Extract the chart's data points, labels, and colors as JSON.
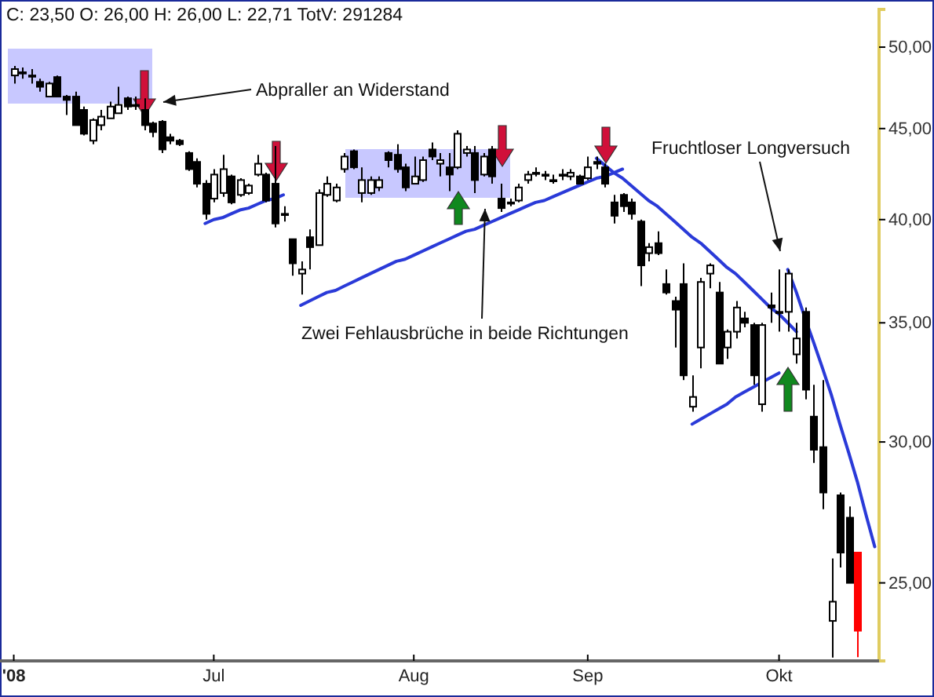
{
  "chart_data": {
    "type": "candlestick",
    "title": "C: 23,50 O: 26,00 H: 26,00 L: 22,71 TotV: 291284",
    "categories": [
      "'08",
      null,
      null,
      null,
      null,
      null,
      null,
      null,
      null,
      null,
      null,
      null,
      null,
      null,
      null,
      null,
      null,
      null,
      null,
      null,
      null,
      null,
      null,
      "Jul",
      null,
      null,
      null,
      null,
      null,
      null,
      null,
      null,
      null,
      null,
      null,
      null,
      null,
      null,
      null,
      null,
      null,
      null,
      null,
      null,
      null,
      null,
      "Aug",
      null,
      null,
      null,
      null,
      null,
      null,
      null,
      null,
      null,
      null,
      null,
      null,
      null,
      null,
      null,
      null,
      null,
      null,
      null,
      "Sep",
      null,
      null,
      null,
      null,
      null,
      null,
      null,
      null,
      null,
      null,
      null,
      null,
      null,
      null,
      null,
      null,
      null,
      null,
      null,
      null,
      null,
      "Okt",
      null,
      null,
      null,
      null,
      null,
      null,
      null,
      null,
      null,
      null,
      null
    ],
    "ohlc": [
      [
        48.2,
        48.8,
        47.7,
        48.6
      ],
      [
        48.4,
        48.7,
        48.0,
        48.4
      ],
      [
        48.2,
        48.6,
        47.7,
        48.2
      ],
      [
        47.8,
        48.0,
        47.2,
        47.5
      ],
      [
        46.9,
        47.8,
        46.9,
        47.7
      ],
      [
        48.1,
        48.2,
        46.9,
        46.9
      ],
      [
        46.9,
        47.0,
        45.8,
        46.7
      ],
      [
        46.9,
        47.2,
        45.2,
        45.2
      ],
      [
        46.1,
        46.3,
        44.6,
        44.7
      ],
      [
        44.3,
        45.6,
        44.1,
        45.5
      ],
      [
        45.2,
        46.1,
        44.9,
        45.7
      ],
      [
        45.6,
        46.6,
        45.6,
        46.3
      ],
      [
        45.9,
        47.5,
        45.9,
        46.4
      ],
      [
        46.8,
        46.9,
        46.1,
        46.3
      ],
      [
        46.4,
        46.9,
        46.1,
        46.4
      ],
      [
        46.1,
        46.8,
        44.9,
        45.2
      ],
      [
        45.3,
        45.4,
        44.5,
        44.8
      ],
      [
        45.4,
        45.5,
        43.6,
        43.8
      ],
      [
        44.5,
        44.7,
        44.1,
        44.3
      ],
      [
        44.3,
        44.4,
        44.0,
        44.1
      ],
      [
        43.6,
        43.7,
        42.6,
        42.7
      ],
      [
        43.1,
        43.3,
        41.7,
        41.9
      ],
      [
        41.9,
        42.1,
        40.0,
        40.3
      ],
      [
        41.1,
        42.7,
        40.9,
        42.4
      ],
      [
        41.4,
        43.5,
        41.2,
        42.7
      ],
      [
        42.3,
        42.4,
        40.8,
        40.9
      ],
      [
        41.3,
        42.2,
        41.2,
        42.1
      ],
      [
        41.4,
        41.9,
        41.3,
        41.8
      ],
      [
        42.4,
        43.5,
        42.3,
        43.0
      ],
      [
        42.4,
        42.5,
        40.9,
        41.0
      ],
      [
        41.9,
        44.0,
        39.6,
        39.8
      ],
      [
        40.3,
        40.7,
        39.9,
        40.3
      ],
      [
        39.0,
        39.0,
        37.2,
        37.8
      ],
      [
        37.3,
        37.9,
        36.3,
        37.5
      ],
      [
        39.1,
        39.5,
        37.5,
        38.6
      ],
      [
        38.7,
        41.6,
        38.7,
        41.4
      ],
      [
        41.3,
        42.3,
        41.2,
        41.9
      ],
      [
        41.0,
        41.9,
        40.9,
        41.7
      ],
      [
        42.7,
        43.6,
        42.5,
        43.4
      ],
      [
        43.7,
        43.8,
        42.7,
        42.8
      ],
      [
        41.4,
        42.8,
        40.9,
        42.1
      ],
      [
        41.4,
        42.3,
        41.3,
        42.1
      ],
      [
        41.7,
        42.3,
        41.5,
        42.1
      ],
      [
        43.6,
        43.7,
        42.8,
        43.2
      ],
      [
        43.5,
        44.1,
        42.5,
        42.7
      ],
      [
        42.8,
        43.0,
        41.5,
        41.7
      ],
      [
        41.9,
        43.4,
        41.9,
        42.3
      ],
      [
        42.1,
        43.4,
        42.0,
        43.2
      ],
      [
        43.8,
        44.2,
        43.2,
        43.4
      ],
      [
        43.0,
        43.6,
        42.3,
        43.2
      ],
      [
        42.8,
        43.6,
        41.5,
        42.4
      ],
      [
        42.8,
        44.9,
        42.7,
        44.7
      ],
      [
        43.6,
        44.0,
        43.4,
        43.8
      ],
      [
        43.6,
        44.0,
        41.4,
        42.1
      ],
      [
        42.4,
        43.6,
        42.3,
        43.4
      ],
      [
        43.8,
        44.0,
        41.9,
        42.3
      ],
      [
        41.1,
        41.9,
        40.4,
        40.6
      ],
      [
        40.9,
        41.1,
        40.7,
        40.9
      ],
      [
        41.0,
        41.9,
        40.9,
        41.7
      ],
      [
        42.1,
        42.6,
        41.9,
        42.4
      ],
      [
        42.5,
        42.8,
        42.3,
        42.5
      ],
      [
        42.4,
        42.6,
        42.1,
        42.4
      ],
      [
        42.1,
        42.4,
        41.9,
        42.1
      ],
      [
        42.4,
        42.7,
        42.1,
        42.4
      ],
      [
        42.3,
        42.7,
        42.1,
        42.5
      ],
      [
        42.3,
        42.4,
        41.9,
        41.9
      ],
      [
        42.2,
        43.4,
        42.1,
        42.8
      ],
      [
        43.1,
        43.4,
        42.7,
        43.0
      ],
      [
        42.8,
        43.0,
        41.7,
        41.9
      ],
      [
        40.9,
        41.3,
        39.8,
        40.2
      ],
      [
        41.3,
        41.4,
        40.4,
        40.7
      ],
      [
        40.9,
        41.1,
        40.0,
        40.3
      ],
      [
        39.9,
        40.0,
        36.7,
        37.7
      ],
      [
        38.3,
        38.8,
        37.9,
        38.6
      ],
      [
        38.8,
        39.4,
        38.2,
        38.3
      ],
      [
        36.8,
        37.5,
        36.3,
        36.4
      ],
      [
        36.0,
        36.2,
        33.9,
        35.6
      ],
      [
        36.8,
        37.8,
        32.5,
        32.7
      ],
      [
        31.4,
        32.7,
        31.2,
        31.8
      ],
      [
        33.9,
        37.1,
        33.0,
        36.9
      ],
      [
        37.3,
        37.8,
        36.6,
        37.7
      ],
      [
        36.4,
        36.9,
        33.2,
        33.2
      ],
      [
        33.9,
        34.7,
        33.4,
        34.6
      ],
      [
        34.6,
        36.0,
        34.3,
        35.7
      ],
      [
        35.2,
        35.5,
        34.8,
        35.0
      ],
      [
        34.9,
        35.0,
        32.3,
        32.7
      ],
      [
        31.5,
        35.0,
        31.2,
        34.9
      ],
      [
        35.8,
        36.4,
        35.0,
        35.7
      ],
      [
        35.5,
        37.5,
        34.6,
        35.5
      ],
      [
        35.5,
        37.5,
        34.6,
        37.3
      ],
      [
        33.6,
        35.0,
        33.2,
        34.3
      ],
      [
        35.5,
        35.7,
        31.7,
        32.1
      ],
      [
        31.0,
        32.3,
        29.2,
        29.7
      ],
      [
        29.8,
        32.5,
        27.5,
        28.1
      ],
      [
        23.8,
        25.8,
        22.7,
        24.4
      ],
      [
        28.0,
        28.1,
        25.5,
        26.0
      ],
      [
        27.2,
        27.6,
        25.0,
        25.0
      ],
      [
        26.0,
        26.0,
        22.71,
        23.5
      ],
      null,
      null
    ],
    "colors": [
      "#ffffff",
      "#000000",
      "#000000",
      "#000000",
      "#ffffff",
      "#000000",
      "#000000",
      "#000000",
      "#000000",
      "#ffffff",
      "#ffffff",
      "#ffffff",
      "#ffffff",
      "#000000",
      "#000000",
      "#000000",
      "#000000",
      "#000000",
      "#000000",
      "#000000",
      "#000000",
      "#000000",
      "#000000",
      "#ffffff",
      "#ffffff",
      "#000000",
      "#ffffff",
      "#ffffff",
      "#ffffff",
      "#000000",
      "#000000",
      "#000000",
      "#000000",
      "#ffffff",
      "#000000",
      "#ffffff",
      "#ffffff",
      "#ffffff",
      "#ffffff",
      "#000000",
      "#ffffff",
      "#ffffff",
      "#ffffff",
      "#000000",
      "#000000",
      "#000000",
      "#ffffff",
      "#ffffff",
      "#000000",
      "#ffffff",
      "#000000",
      "#ffffff",
      "#ffffff",
      "#000000",
      "#ffffff",
      "#000000",
      "#000000",
      "#000000",
      "#ffffff",
      "#ffffff",
      "#000000",
      "#000000",
      "#000000",
      "#000000",
      "#ffffff",
      "#000000",
      "#ffffff",
      "#000000",
      "#000000",
      "#000000",
      "#000000",
      "#000000",
      "#000000",
      "#ffffff",
      "#000000",
      "#000000",
      "#000000",
      "#000000",
      "#ffffff",
      "#ffffff",
      "#ffffff",
      "#000000",
      "#ffffff",
      "#ffffff",
      "#000000",
      "#000000",
      "#ffffff",
      "#000000",
      "#000000",
      "#ffffff",
      "#ffffff",
      "#000000",
      "#000000",
      "#000000",
      "#ffffff",
      "#000000",
      "#000000",
      "#ff0000",
      null,
      null
    ],
    "series": [
      {
        "type": "line",
        "color": "#2a3ad8",
        "values": [
          null,
          null,
          null,
          null,
          null,
          null,
          null,
          null,
          null,
          null,
          null,
          null,
          null,
          null,
          null,
          null,
          null,
          null,
          null,
          null,
          null,
          null,
          39.8,
          40.0,
          40.1,
          40.3,
          40.5,
          40.6,
          40.8,
          41.0,
          41.1,
          41.3,
          null,
          null,
          null,
          null,
          null,
          null,
          null,
          null,
          null,
          null,
          null,
          null,
          null,
          null,
          null,
          null,
          null,
          null,
          null,
          null,
          null,
          null,
          null,
          null,
          null,
          null,
          null,
          null,
          null,
          null,
          null,
          null,
          null,
          null,
          null,
          null,
          null,
          null,
          null,
          null,
          null,
          null,
          null,
          null,
          null,
          null,
          null,
          null,
          null,
          null,
          null,
          null,
          null,
          null,
          null,
          null,
          null,
          null,
          null,
          null,
          null,
          null,
          null,
          null,
          null,
          null,
          null,
          null
        ]
      },
      {
        "type": "line",
        "color": "#2a3ad8",
        "values": [
          null,
          null,
          null,
          null,
          null,
          null,
          null,
          null,
          null,
          null,
          null,
          null,
          null,
          null,
          null,
          null,
          null,
          null,
          null,
          null,
          null,
          null,
          null,
          null,
          null,
          null,
          null,
          null,
          null,
          null,
          null,
          null,
          null,
          35.8,
          36.0,
          36.2,
          36.4,
          36.5,
          36.7,
          36.9,
          37.1,
          37.3,
          37.5,
          37.7,
          37.9,
          38.0,
          38.2,
          38.4,
          38.6,
          38.8,
          39.0,
          39.2,
          39.4,
          39.5,
          39.7,
          39.9,
          40.1,
          40.3,
          40.5,
          40.7,
          40.9,
          41.0,
          41.2,
          41.4,
          41.6,
          41.8,
          42.0,
          42.2,
          42.3,
          42.5,
          42.7,
          null,
          null,
          null,
          null,
          null,
          null,
          null,
          null,
          null,
          null,
          null,
          null,
          null,
          null,
          null,
          null,
          null,
          null,
          null,
          null,
          null,
          null,
          null,
          null,
          null,
          null,
          null,
          null,
          null
        ]
      },
      {
        "type": "line",
        "color": "#2a3ad8",
        "values": [
          null,
          null,
          null,
          null,
          null,
          null,
          null,
          null,
          null,
          null,
          null,
          null,
          null,
          null,
          null,
          null,
          null,
          null,
          null,
          null,
          null,
          null,
          null,
          null,
          null,
          null,
          null,
          null,
          null,
          null,
          null,
          null,
          null,
          null,
          null,
          null,
          null,
          null,
          null,
          null,
          null,
          null,
          null,
          null,
          null,
          null,
          null,
          null,
          null,
          null,
          null,
          null,
          null,
          null,
          null,
          null,
          null,
          null,
          null,
          null,
          null,
          null,
          null,
          null,
          null,
          null,
          null,
          43.3,
          42.9,
          42.5,
          42.2,
          41.8,
          41.4,
          41.0,
          40.7,
          40.3,
          39.9,
          39.5,
          39.1,
          38.8,
          38.4,
          38.0,
          37.6,
          37.3,
          36.9,
          36.5,
          36.1,
          35.7,
          35.4,
          35.0,
          34.6,
          null,
          null,
          null,
          null,
          null,
          null,
          null,
          null,
          null
        ]
      },
      {
        "type": "line",
        "color": "#2a3ad8",
        "values": [
          null,
          null,
          null,
          null,
          null,
          null,
          null,
          null,
          null,
          null,
          null,
          null,
          null,
          null,
          null,
          null,
          null,
          null,
          null,
          null,
          null,
          null,
          null,
          null,
          null,
          null,
          null,
          null,
          null,
          null,
          null,
          null,
          null,
          null,
          null,
          null,
          null,
          null,
          null,
          null,
          null,
          null,
          null,
          null,
          null,
          null,
          null,
          null,
          null,
          null,
          null,
          null,
          null,
          null,
          null,
          null,
          null,
          null,
          null,
          null,
          null,
          null,
          null,
          null,
          null,
          null,
          null,
          null,
          null,
          null,
          null,
          null,
          null,
          null,
          null,
          null,
          null,
          null,
          30.7,
          30.9,
          31.1,
          31.3,
          31.5,
          31.8,
          32.0,
          32.2,
          32.4,
          32.6,
          32.8,
          null,
          null,
          null,
          null,
          null,
          null,
          null,
          null,
          null,
          null,
          null
        ]
      },
      {
        "type": "line",
        "color": "#2a3ad8",
        "values": [
          null,
          null,
          null,
          null,
          null,
          null,
          null,
          null,
          null,
          null,
          null,
          null,
          null,
          null,
          null,
          null,
          null,
          null,
          null,
          null,
          null,
          null,
          null,
          null,
          null,
          null,
          null,
          null,
          null,
          null,
          null,
          null,
          null,
          null,
          null,
          null,
          null,
          null,
          null,
          null,
          null,
          null,
          null,
          null,
          null,
          null,
          null,
          null,
          null,
          null,
          null,
          null,
          null,
          null,
          null,
          null,
          null,
          null,
          null,
          null,
          null,
          null,
          null,
          null,
          null,
          null,
          null,
          null,
          null,
          null,
          null,
          null,
          null,
          null,
          null,
          null,
          null,
          null,
          null,
          null,
          null,
          null,
          null,
          null,
          null,
          null,
          null,
          null,
          null,
          37.5,
          36.4,
          35.2,
          34.1,
          33.0,
          31.9,
          30.7,
          29.6,
          28.5,
          27.3,
          26.2
        ]
      }
    ],
    "log": true,
    "ylim": [
      22.6,
      52.5
    ],
    "yticks": [
      {
        "value": 25,
        "label": "25,00"
      },
      {
        "value": 30,
        "label": "30,00"
      },
      {
        "value": 35,
        "label": "35,00"
      },
      {
        "value": 40,
        "label": "40,00"
      },
      {
        "value": 45,
        "label": "45,00"
      },
      {
        "value": 50,
        "label": "50,00"
      }
    ],
    "annotations": [
      "Abpraller an Widerstand",
      "Zwei Fehlausbrüche in beide Richtungen",
      "Fruchtloser Longversuch"
    ],
    "grid": false
  }
}
